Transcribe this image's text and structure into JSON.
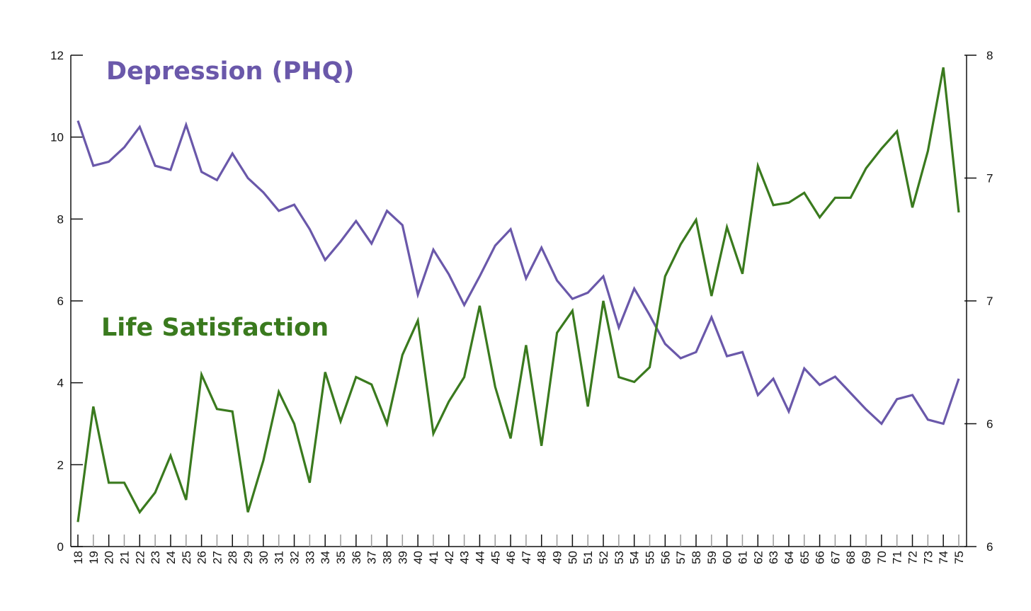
{
  "chart_data": {
    "type": "line",
    "title": "",
    "xlabel": "",
    "ylabel": "",
    "x": [
      18,
      19,
      20,
      21,
      22,
      23,
      24,
      25,
      26,
      27,
      28,
      29,
      30,
      31,
      32,
      33,
      34,
      35,
      36,
      37,
      38,
      39,
      40,
      41,
      42,
      43,
      44,
      45,
      46,
      47,
      48,
      49,
      50,
      51,
      52,
      53,
      54,
      55,
      56,
      57,
      58,
      59,
      60,
      61,
      62,
      63,
      64,
      65,
      66,
      67,
      68,
      69,
      70,
      71,
      72,
      73,
      74,
      75
    ],
    "x_tick_labels": [
      "18",
      "19",
      "20",
      "21",
      "22",
      "23",
      "24",
      "25",
      "26",
      "27",
      "28",
      "29",
      "30",
      "31",
      "32",
      "33",
      "34",
      "35",
      "36",
      "37",
      "38",
      "39",
      "40",
      "41",
      "42",
      "43",
      "44",
      "45",
      "46",
      "47",
      "48",
      "49",
      "50",
      "51",
      "52",
      "53",
      "54",
      "55",
      "56",
      "57",
      "58",
      "59",
      "60",
      "61",
      "62",
      "63",
      "64",
      "65",
      "66",
      "67",
      "68",
      "69",
      "70",
      "71",
      "72",
      "73",
      "74",
      "75"
    ],
    "left_axis": {
      "ylim": [
        0,
        12
      ],
      "ticks": [
        0,
        2,
        4,
        6,
        8,
        10,
        12
      ],
      "tick_labels": [
        "0",
        "2",
        "4",
        "6",
        "8",
        "10",
        "12"
      ]
    },
    "right_axis": {
      "ylim": [
        6,
        8
      ],
      "ticks": [
        6,
        6.5,
        7,
        7.5,
        8
      ],
      "tick_labels": [
        "6",
        "6",
        "7",
        "7",
        "8"
      ]
    },
    "grid": false,
    "series": [
      {
        "name": "Depression (PHQ)",
        "axis": "left",
        "color": "#6a58aa",
        "label_position": "top-left",
        "values": [
          10.4,
          9.3,
          9.4,
          9.75,
          10.25,
          9.3,
          9.2,
          10.3,
          9.15,
          8.95,
          9.6,
          9.0,
          8.65,
          8.2,
          8.35,
          7.75,
          7.0,
          7.45,
          7.95,
          7.4,
          8.2,
          7.85,
          6.15,
          7.25,
          6.65,
          5.9,
          6.6,
          7.35,
          7.75,
          6.55,
          7.3,
          6.5,
          6.05,
          6.2,
          6.6,
          5.35,
          6.3,
          5.65,
          4.95,
          4.6,
          4.75,
          5.6,
          4.65,
          4.75,
          3.7,
          4.1,
          3.3,
          4.35,
          3.95,
          4.15,
          3.75,
          3.35,
          3.0,
          3.6,
          3.7,
          3.1,
          3.0,
          4.1
        ]
      },
      {
        "name": "Life Satisfaction",
        "axis": "right",
        "color": "#3a7a1e",
        "label_position": "middle-left",
        "values": [
          6.1,
          6.57,
          6.26,
          6.26,
          6.14,
          6.22,
          6.37,
          6.19,
          6.7,
          6.56,
          6.55,
          6.14,
          6.35,
          6.63,
          6.5,
          6.26,
          6.71,
          6.51,
          6.69,
          6.66,
          6.5,
          6.78,
          6.92,
          6.46,
          6.59,
          6.69,
          6.98,
          6.65,
          6.44,
          6.82,
          6.41,
          6.87,
          6.96,
          6.57,
          7.0,
          6.69,
          6.67,
          6.73,
          7.1,
          7.23,
          7.33,
          7.02,
          7.3,
          7.11,
          7.55,
          7.39,
          7.4,
          7.44,
          7.34,
          7.42,
          7.42,
          7.54,
          7.62,
          7.69,
          7.38,
          7.61,
          7.95,
          7.36
        ]
      }
    ]
  }
}
